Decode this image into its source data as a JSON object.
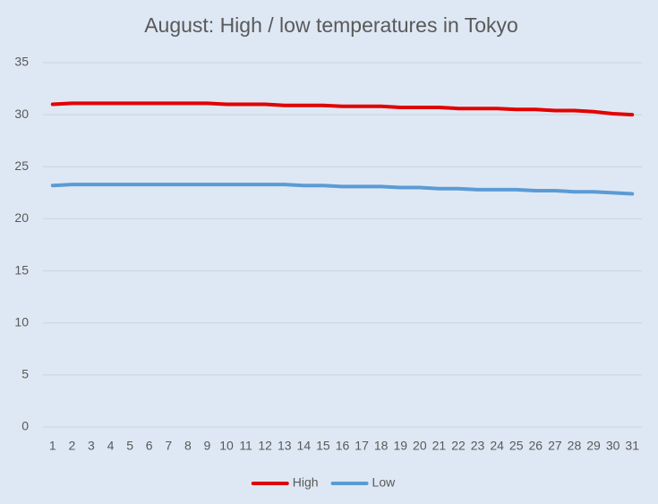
{
  "chart_data": {
    "type": "line",
    "title": "August: High / low temperatures in Tokyo",
    "categories": [
      "1",
      "2",
      "3",
      "4",
      "5",
      "6",
      "7",
      "8",
      "9",
      "10",
      "11",
      "12",
      "13",
      "14",
      "15",
      "16",
      "17",
      "18",
      "19",
      "20",
      "21",
      "22",
      "23",
      "24",
      "25",
      "26",
      "27",
      "28",
      "29",
      "30",
      "31"
    ],
    "series": [
      {
        "name": "High",
        "color": "#e30000",
        "values": [
          31.0,
          31.1,
          31.1,
          31.1,
          31.1,
          31.1,
          31.1,
          31.1,
          31.1,
          31.0,
          31.0,
          31.0,
          30.9,
          30.9,
          30.9,
          30.8,
          30.8,
          30.8,
          30.7,
          30.7,
          30.7,
          30.6,
          30.6,
          30.6,
          30.5,
          30.5,
          30.4,
          30.4,
          30.3,
          30.1,
          30.0
        ]
      },
      {
        "name": "Low",
        "color": "#5b9bd5",
        "values": [
          23.2,
          23.3,
          23.3,
          23.3,
          23.3,
          23.3,
          23.3,
          23.3,
          23.3,
          23.3,
          23.3,
          23.3,
          23.3,
          23.2,
          23.2,
          23.1,
          23.1,
          23.1,
          23.0,
          23.0,
          22.9,
          22.9,
          22.8,
          22.8,
          22.8,
          22.7,
          22.7,
          22.6,
          22.6,
          22.5,
          22.4
        ]
      }
    ],
    "ylim": [
      0,
      35
    ],
    "yticks": [
      0,
      5,
      10,
      15,
      20,
      25,
      30,
      35
    ],
    "grid": true,
    "legend": "bottom"
  }
}
